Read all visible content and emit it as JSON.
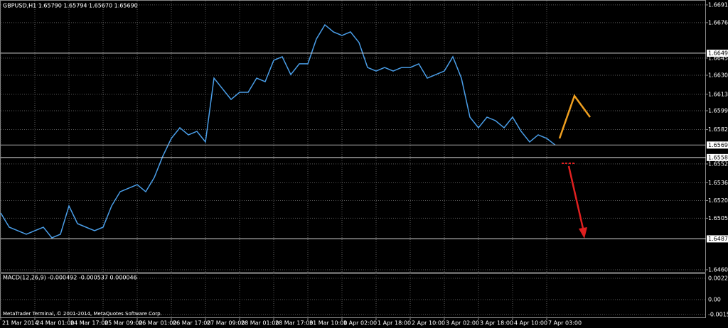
{
  "chart_data": {
    "type": "line",
    "title": "GBPUSD,H1 1.65790 1.65794 1.65670 1.65690",
    "color": "#4a9ee8",
    "categories": [
      "21 Mar 2014",
      null,
      null,
      null,
      "24 Mar 01:00",
      null,
      null,
      null,
      "24 Mar 17:00",
      null,
      null,
      null,
      "25 Mar 09:00",
      null,
      null,
      null,
      "26 Mar 01:00",
      null,
      null,
      null,
      "26 Mar 17:00",
      null,
      null,
      null,
      "27 Mar 09:00",
      null,
      null,
      null,
      "28 Mar 01:00",
      null,
      null,
      null,
      "28 Mar 17:00",
      null,
      null,
      null,
      "31 Mar 10:00",
      null,
      null,
      null,
      "1 Apr 02:00",
      null,
      null,
      null,
      "1 Apr 18:00",
      null,
      null,
      null,
      "2 Apr 10:00",
      null,
      null,
      null,
      "3 Apr 02:00",
      null,
      null,
      null,
      "3 Apr 18:00",
      null,
      null,
      null,
      "4 Apr 10:00",
      null,
      null,
      null,
      "7 Apr 03:00",
      null
    ],
    "values": [
      1.65096,
      1.64972,
      1.64941,
      1.6491,
      1.64941,
      1.64972,
      1.64879,
      1.6491,
      1.65158,
      1.65003,
      1.64972,
      1.64941,
      1.64972,
      1.65158,
      1.65282,
      1.65313,
      1.65344,
      1.65282,
      1.65406,
      1.65593,
      1.65748,
      1.65841,
      1.65779,
      1.6581,
      1.65717,
      1.66275,
      1.66182,
      1.66089,
      1.66151,
      1.66151,
      1.66275,
      1.66244,
      1.66431,
      1.66462,
      1.66306,
      1.664,
      1.664,
      1.66617,
      1.66741,
      1.66679,
      1.66648,
      1.66679,
      1.66586,
      1.66368,
      1.66337,
      1.66368,
      1.66337,
      1.66368,
      1.66368,
      1.664,
      1.66275,
      1.66306,
      1.66337,
      1.66462,
      1.66275,
      1.65934,
      1.65841,
      1.65934,
      1.65903,
      1.65841,
      1.65934,
      1.6581,
      1.65717,
      1.65779,
      1.65748,
      1.6569
    ],
    "ylim": [
      1.64581,
      1.66958
    ],
    "yticks": [
      {
        "value": 1.66915,
        "label": "1.66915"
      },
      {
        "value": 1.6676,
        "label": "1.66760"
      },
      {
        "value": 1.6645,
        "label": "1.66450"
      },
      {
        "value": 1.663,
        "label": "1.66300"
      },
      {
        "value": 1.66134,
        "label": "1.66134"
      },
      {
        "value": 1.6599,
        "label": "1.65990"
      },
      {
        "value": 1.65825,
        "label": "1.65825"
      },
      {
        "value": 1.65525,
        "label": "1.65525"
      },
      {
        "value": 1.6536,
        "label": "1.65360"
      },
      {
        "value": 1.65205,
        "label": "1.65205"
      },
      {
        "value": 1.6505,
        "label": "1.65050"
      },
      {
        "value": 1.646,
        "label": "1.64600"
      }
    ],
    "levels": [
      {
        "value": 1.66493,
        "label": "1.66493"
      },
      {
        "value": 1.6569,
        "label": "1.65690"
      },
      {
        "value": 1.65581,
        "label": "1.65581"
      },
      {
        "value": 1.6487,
        "label": "1.64870"
      }
    ],
    "grid": true
  },
  "macd": {
    "label": "MACD(12,26,9) -0.000492 -0.000537 0.000046",
    "ylim": [
      -0.001862,
      0.002681
    ],
    "yticks": [
      0.002234,
      {
        "value": 0,
        "label": "0.00"
      },
      -0.001556
    ]
  },
  "copyright": "MetaTrader Terminal, © 2001-2014, MetaQuotes Software Corp."
}
